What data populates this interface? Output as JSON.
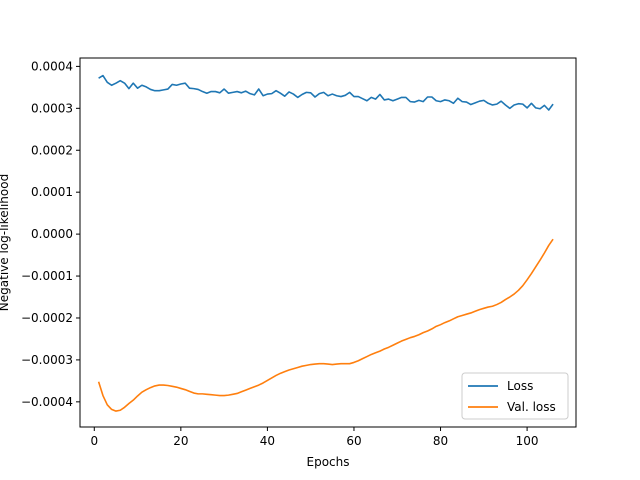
{
  "chart_data": {
    "type": "line",
    "title": "",
    "xlabel": "Epochs",
    "ylabel": "Negative log-likelihood",
    "xlim": [
      -3.3,
      111.3
    ],
    "ylim": [
      -0.00046,
      0.00042
    ],
    "xticks": [
      0,
      20,
      40,
      60,
      80,
      100
    ],
    "xtick_labels": [
      "0",
      "20",
      "40",
      "60",
      "80",
      "100"
    ],
    "yticks": [
      -0.0004,
      -0.0003,
      -0.0002,
      -0.0001,
      0.0,
      0.0001,
      0.0002,
      0.0003,
      0.0004
    ],
    "ytick_labels": [
      "−0.0004",
      "−0.0003",
      "−0.0002",
      "−0.0001",
      "0.0000",
      "0.0001",
      "0.0002",
      "0.0003",
      "0.0004"
    ],
    "grid": false,
    "legend_position": "bottom-right",
    "colors": {
      "Loss": "#1f77b4",
      "Val. loss": "#ff7f0e"
    },
    "series": [
      {
        "name": "Loss",
        "x": [
          1,
          2,
          3,
          4,
          5,
          6,
          7,
          8,
          9,
          10,
          11,
          12,
          13,
          14,
          15,
          16,
          17,
          18,
          19,
          20,
          21,
          22,
          23,
          24,
          25,
          26,
          27,
          28,
          29,
          30,
          31,
          32,
          33,
          34,
          35,
          36,
          37,
          38,
          39,
          40,
          41,
          42,
          43,
          44,
          45,
          46,
          47,
          48,
          49,
          50,
          51,
          52,
          53,
          54,
          55,
          56,
          57,
          58,
          59,
          60,
          61,
          62,
          63,
          64,
          65,
          66,
          67,
          68,
          69,
          70,
          71,
          72,
          73,
          74,
          75,
          76,
          77,
          78,
          79,
          80,
          81,
          82,
          83,
          84,
          85,
          86,
          87,
          88,
          89,
          90,
          91,
          92,
          93,
          94,
          95,
          96,
          97,
          98,
          99,
          100,
          101,
          102,
          103,
          104,
          105,
          106
        ],
        "values": [
          0.000372,
          0.000378,
          0.000362,
          0.000355,
          0.00036,
          0.000366,
          0.00036,
          0.000347,
          0.00036,
          0.000348,
          0.000355,
          0.000351,
          0.000345,
          0.000342,
          0.000342,
          0.000344,
          0.000346,
          0.000357,
          0.000355,
          0.000358,
          0.00036,
          0.000348,
          0.000347,
          0.000345,
          0.00034,
          0.000336,
          0.00034,
          0.00034,
          0.000337,
          0.000346,
          0.000336,
          0.000338,
          0.00034,
          0.000337,
          0.000341,
          0.000335,
          0.000332,
          0.000346,
          0.00033,
          0.000334,
          0.000335,
          0.000342,
          0.000336,
          0.000329,
          0.000339,
          0.000334,
          0.000326,
          0.000333,
          0.000338,
          0.000337,
          0.000327,
          0.000335,
          0.000338,
          0.00033,
          0.000334,
          0.00033,
          0.000328,
          0.000331,
          0.000338,
          0.000328,
          0.000328,
          0.000323,
          0.000318,
          0.000326,
          0.000322,
          0.000333,
          0.00032,
          0.000322,
          0.000318,
          0.000322,
          0.000326,
          0.000326,
          0.000316,
          0.000315,
          0.000319,
          0.000316,
          0.000327,
          0.000327,
          0.000318,
          0.000316,
          0.00032,
          0.000318,
          0.000312,
          0.000324,
          0.000316,
          0.000315,
          0.000309,
          0.000313,
          0.000317,
          0.000319,
          0.000312,
          0.000308,
          0.00031,
          0.000317,
          0.000308,
          0.0003,
          0.000308,
          0.000311,
          0.00031,
          0.000301,
          0.000312,
          0.000301,
          0.000299,
          0.000307,
          0.000296,
          0.00031
        ]
      },
      {
        "name": "Val. loss",
        "x": [
          1,
          2,
          3,
          4,
          5,
          6,
          7,
          8,
          9,
          10,
          11,
          12,
          13,
          14,
          15,
          16,
          17,
          18,
          19,
          20,
          21,
          22,
          23,
          24,
          25,
          26,
          27,
          28,
          29,
          30,
          31,
          32,
          33,
          34,
          35,
          36,
          37,
          38,
          39,
          40,
          41,
          42,
          43,
          44,
          45,
          46,
          47,
          48,
          49,
          50,
          51,
          52,
          53,
          54,
          55,
          56,
          57,
          58,
          59,
          60,
          61,
          62,
          63,
          64,
          65,
          66,
          67,
          68,
          69,
          70,
          71,
          72,
          73,
          74,
          75,
          76,
          77,
          78,
          79,
          80,
          81,
          82,
          83,
          84,
          85,
          86,
          87,
          88,
          89,
          90,
          91,
          92,
          93,
          94,
          95,
          96,
          97,
          98,
          99,
          100,
          101,
          102,
          103,
          104,
          105,
          106
        ],
        "values": [
          -0.000352,
          -0.000385,
          -0.000407,
          -0.000418,
          -0.000422,
          -0.00042,
          -0.000413,
          -0.000404,
          -0.000396,
          -0.000386,
          -0.000377,
          -0.000371,
          -0.000366,
          -0.000362,
          -0.00036,
          -0.00036,
          -0.000361,
          -0.000363,
          -0.000365,
          -0.000368,
          -0.000371,
          -0.000375,
          -0.000379,
          -0.000381,
          -0.000381,
          -0.000382,
          -0.000383,
          -0.000384,
          -0.000385,
          -0.000385,
          -0.000384,
          -0.000382,
          -0.00038,
          -0.000376,
          -0.000372,
          -0.000368,
          -0.000364,
          -0.00036,
          -0.000355,
          -0.000349,
          -0.000343,
          -0.000337,
          -0.000332,
          -0.000328,
          -0.000324,
          -0.000321,
          -0.000318,
          -0.000315,
          -0.000313,
          -0.000311,
          -0.00031,
          -0.000309,
          -0.000309,
          -0.00031,
          -0.000311,
          -0.00031,
          -0.000309,
          -0.000309,
          -0.000309,
          -0.000306,
          -0.000302,
          -0.000297,
          -0.000292,
          -0.000287,
          -0.000283,
          -0.000279,
          -0.000274,
          -0.00027,
          -0.000265,
          -0.00026,
          -0.000255,
          -0.000251,
          -0.000247,
          -0.000244,
          -0.00024,
          -0.000235,
          -0.000231,
          -0.000226,
          -0.00022,
          -0.000216,
          -0.000211,
          -0.000207,
          -0.000202,
          -0.000197,
          -0.000194,
          -0.000191,
          -0.000188,
          -0.000184,
          -0.00018,
          -0.000177,
          -0.000174,
          -0.000172,
          -0.000168,
          -0.000163,
          -0.000156,
          -0.00015,
          -0.000143,
          -0.000134,
          -0.000123,
          -0.000109,
          -9.4e-05,
          -7.8e-05,
          -6.2e-05,
          -4.5e-05,
          -2.7e-05,
          -1.2e-05
        ]
      }
    ]
  }
}
